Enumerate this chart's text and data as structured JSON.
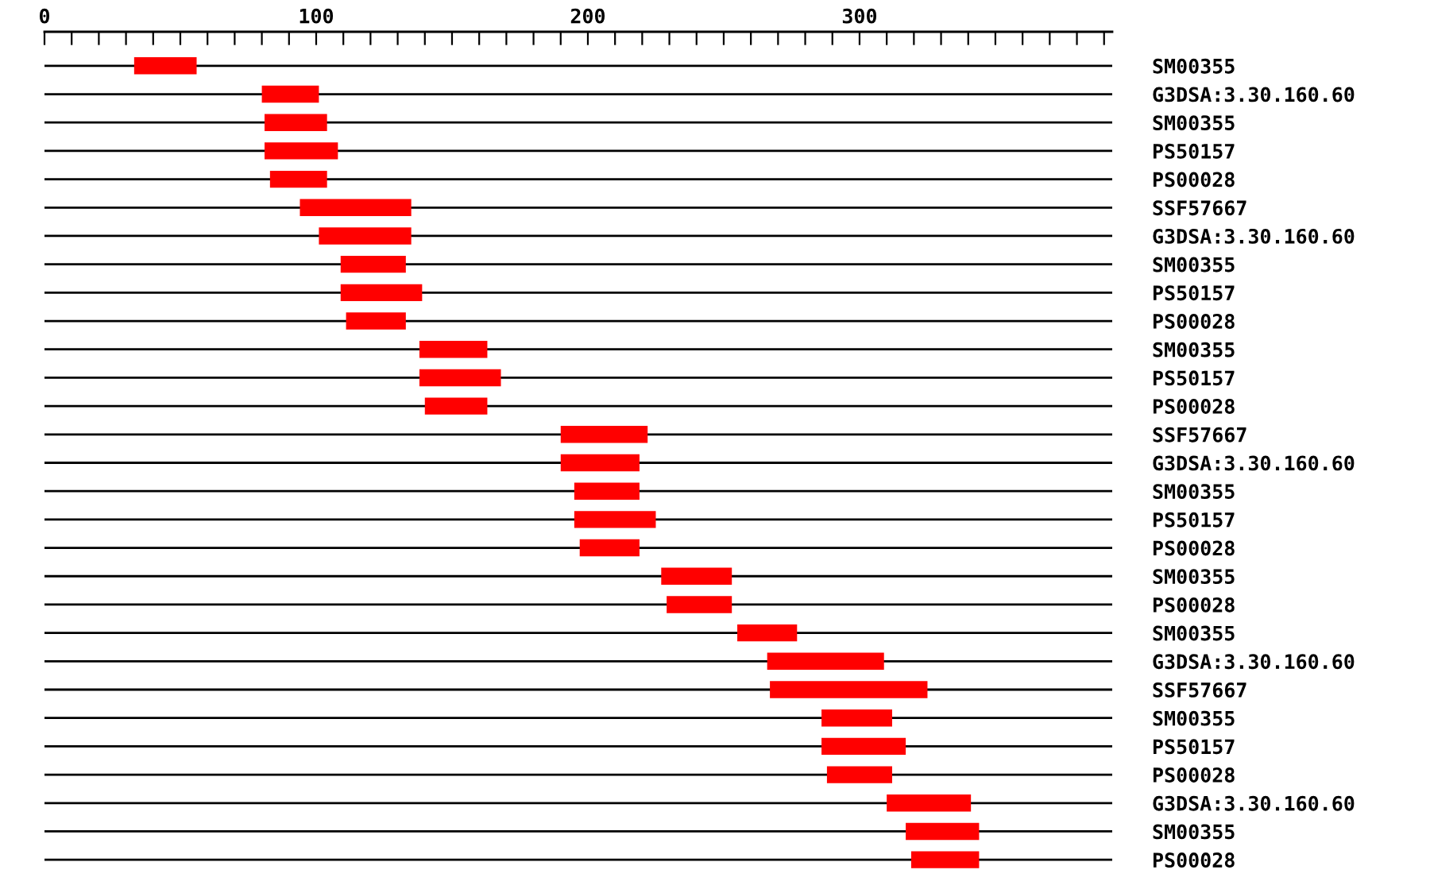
{
  "chart_data": {
    "type": "bar",
    "orientation": "horizontal",
    "color": "#ff0000",
    "grid": "y",
    "tick_labels": "xy",
    "categories": [
      "SM00355",
      "G3DSA:3.30.160.60",
      "SM00355",
      "PS50157",
      "PS00028",
      "SSF57667",
      "G3DSA:3.30.160.60",
      "SM00355",
      "PS50157",
      "PS00028",
      "SM00355",
      "PS50157",
      "PS00028",
      "SSF57667",
      "G3DSA:3.30.160.60",
      "SM00355",
      "PS50157",
      "PS00028",
      "SM00355",
      "PS00028",
      "SM00355",
      "G3DSA:3.30.160.60",
      "SSF57667",
      "SM00355",
      "PS50157",
      "PS00028",
      "G3DSA:3.30.160.60",
      "SM00355",
      "PS00028"
    ],
    "base": [
      33,
      80,
      81,
      81,
      83,
      94,
      101,
      109,
      109,
      111,
      138,
      138,
      140,
      190,
      190,
      195,
      195,
      197,
      227,
      229,
      255,
      266,
      267,
      286,
      286,
      288,
      310,
      317,
      319
    ],
    "values": [
      23,
      21,
      23,
      27,
      21,
      41,
      34,
      24,
      30,
      22,
      25,
      30,
      23,
      32,
      29,
      24,
      30,
      22,
      26,
      24,
      22,
      43,
      58,
      26,
      31,
      24,
      31,
      27,
      25
    ],
    "xlim": [
      0,
      393
    ],
    "xticks": [
      0,
      {
        "value": 10,
        "label": null
      },
      {
        "value": 20,
        "label": null
      },
      {
        "value": 30,
        "label": null
      },
      {
        "value": 40,
        "label": null
      },
      {
        "value": 50,
        "label": null
      },
      {
        "value": 60,
        "label": null
      },
      {
        "value": 70,
        "label": null
      },
      {
        "value": 80,
        "label": null
      },
      {
        "value": 90,
        "label": null
      },
      100,
      {
        "value": 110,
        "label": null
      },
      {
        "value": 120,
        "label": null
      },
      {
        "value": 130,
        "label": null
      },
      {
        "value": 140,
        "label": null
      },
      {
        "value": 150,
        "label": null
      },
      {
        "value": 160,
        "label": null
      },
      {
        "value": 170,
        "label": null
      },
      {
        "value": 180,
        "label": null
      },
      {
        "value": 190,
        "label": null
      },
      200,
      {
        "value": 210,
        "label": null
      },
      {
        "value": 220,
        "label": null
      },
      {
        "value": 230,
        "label": null
      },
      {
        "value": 240,
        "label": null
      },
      {
        "value": 250,
        "label": null
      },
      {
        "value": 260,
        "label": null
      },
      {
        "value": 270,
        "label": null
      },
      {
        "value": 280,
        "label": null
      },
      {
        "value": 290,
        "label": null
      },
      300,
      {
        "value": 310,
        "label": null
      },
      {
        "value": 320,
        "label": null
      },
      {
        "value": 330,
        "label": null
      },
      {
        "value": 340,
        "label": null
      },
      {
        "value": 350,
        "label": null
      },
      {
        "value": 360,
        "label": null
      },
      {
        "value": 370,
        "label": null
      },
      {
        "value": 380,
        "label": null
      },
      {
        "value": 390,
        "label": null
      }
    ]
  }
}
